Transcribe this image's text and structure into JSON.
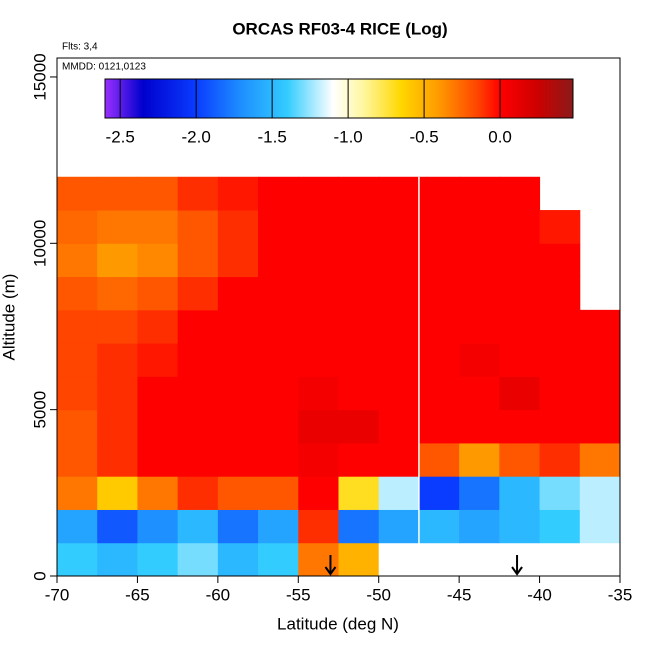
{
  "chart_data": {
    "type": "heatmap",
    "title": "ORCAS RF03-4 RICE (Log)",
    "flights_note": "Flts: 3,4",
    "date_note": "MMDD: 0121,0123",
    "xlabel": "Latitude (deg N)",
    "ylabel": "Altitude (m)",
    "xlim": [
      -70,
      -35
    ],
    "ylim": [
      0,
      15570
    ],
    "xticks": [
      -70,
      -65,
      -60,
      -55,
      -50,
      -45,
      -40,
      -35
    ],
    "yticks": [
      0,
      5000,
      10000,
      15000
    ],
    "x_bins": [
      -70,
      -67.5,
      -65,
      -62.5,
      -60,
      -57.5,
      -55,
      -52.5,
      -50,
      -47.5,
      -45,
      -42.5,
      -40,
      -37.5,
      -35
    ],
    "y_bins": [
      0,
      1000,
      2000,
      3000,
      4000,
      5000,
      6000,
      7000,
      8000,
      9000,
      10000,
      11000,
      12000
    ],
    "values": [
      [
        -1.4,
        -1.5,
        -1.4,
        -1.3,
        -1.5,
        -1.4,
        -0.3,
        -0.5,
        -1.1,
        null,
        null,
        null,
        null,
        null
      ],
      [
        -1.6,
        -1.9,
        -1.7,
        -1.5,
        -1.8,
        -1.6,
        -0.1,
        -1.8,
        -1.6,
        -1.5,
        -1.6,
        -1.5,
        -1.4,
        -1.2
      ],
      [
        -0.3,
        -0.6,
        -0.3,
        -0.1,
        -0.2,
        -0.2,
        0.0,
        -0.7,
        -1.2,
        -2.0,
        -1.8,
        -1.5,
        -1.3,
        -1.2
      ],
      [
        -0.2,
        -0.1,
        0,
        0,
        0,
        0,
        0.05,
        0,
        0,
        -0.2,
        -0.4,
        -0.2,
        -0.1,
        -0.3
      ],
      [
        -0.2,
        -0.1,
        0,
        0,
        0,
        0,
        0.1,
        0.1,
        0,
        0,
        0,
        0,
        0,
        0
      ],
      [
        -0.15,
        -0.1,
        0,
        0,
        0,
        0,
        0.05,
        0,
        0,
        0,
        0,
        0.1,
        0,
        0
      ],
      [
        -0.15,
        -0.1,
        -0.05,
        0,
        0,
        0,
        0,
        0,
        0,
        0,
        0.05,
        0,
        0,
        0
      ],
      [
        -0.15,
        -0.15,
        -0.1,
        0,
        0,
        0,
        0,
        0,
        0,
        0,
        0,
        0,
        0,
        0
      ],
      [
        -0.2,
        -0.25,
        -0.2,
        -0.1,
        0,
        0,
        0,
        0,
        0,
        0,
        0,
        0,
        0,
        null
      ],
      [
        -0.3,
        -0.4,
        -0.35,
        -0.2,
        -0.1,
        0,
        0,
        0,
        0,
        0,
        0,
        0,
        0,
        null
      ],
      [
        -0.25,
        -0.3,
        -0.3,
        -0.2,
        -0.1,
        0,
        0,
        0,
        0,
        0,
        0,
        0,
        -0.05,
        null
      ],
      [
        -0.2,
        -0.2,
        -0.2,
        -0.1,
        -0.05,
        0,
        0,
        0,
        0,
        0,
        0,
        0,
        null,
        null
      ]
    ],
    "divider_x": -47.5,
    "arrows_x": [
      -53,
      -41.4
    ],
    "colorscale": [
      [
        -2.6,
        "#9b30ff"
      ],
      [
        -2.35,
        "#0000cd"
      ],
      [
        -2.0,
        "#0a3cff"
      ],
      [
        -1.7,
        "#1e90ff"
      ],
      [
        -1.4,
        "#33ccff"
      ],
      [
        -1.1,
        "#ffffff"
      ],
      [
        -0.9,
        "#fff7a0"
      ],
      [
        -0.65,
        "#ffd700"
      ],
      [
        -0.4,
        "#ff9900"
      ],
      [
        -0.15,
        "#ff4500"
      ],
      [
        0.0,
        "#ff0000"
      ],
      [
        0.25,
        "#cc0000"
      ],
      [
        0.48,
        "#8b1a1a"
      ]
    ],
    "colorbar_lim": [
      -2.6,
      0.48
    ],
    "colorbar_ticks": [
      -2.5,
      {
        "value": -2.0,
        "label": "-2.0"
      },
      -1.5,
      {
        "value": -1.0,
        "label": "-1.0"
      },
      -0.5,
      {
        "value": 0.0,
        "label": "0.0"
      }
    ]
  }
}
